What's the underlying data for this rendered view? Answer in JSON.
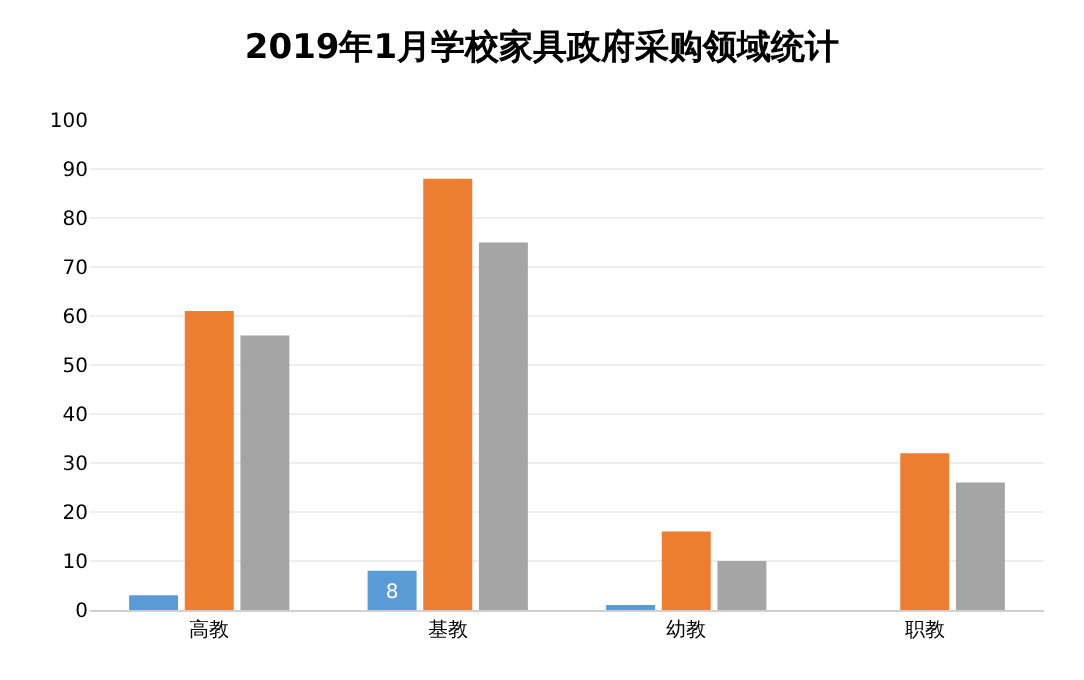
{
  "chart_data": {
    "type": "bar",
    "title": "2019年1月学校家具政府采购领域统计",
    "categories": [
      "高教",
      "基教",
      "幼教",
      "职教"
    ],
    "series": [
      {
        "color": "#5b9bd5",
        "values": [
          3,
          8,
          1,
          0
        ],
        "value_labels": [
          null,
          "8",
          null,
          null
        ]
      },
      {
        "color": "#ed7d31",
        "values": [
          61,
          88,
          16,
          32
        ]
      },
      {
        "color": "#a5a5a5",
        "values": [
          56,
          75,
          10,
          26
        ]
      }
    ],
    "ylim": [
      0,
      100
    ],
    "yticks": [
      0,
      10,
      20,
      30,
      40,
      50,
      60,
      70,
      80,
      90,
      100
    ],
    "grid": "y"
  }
}
